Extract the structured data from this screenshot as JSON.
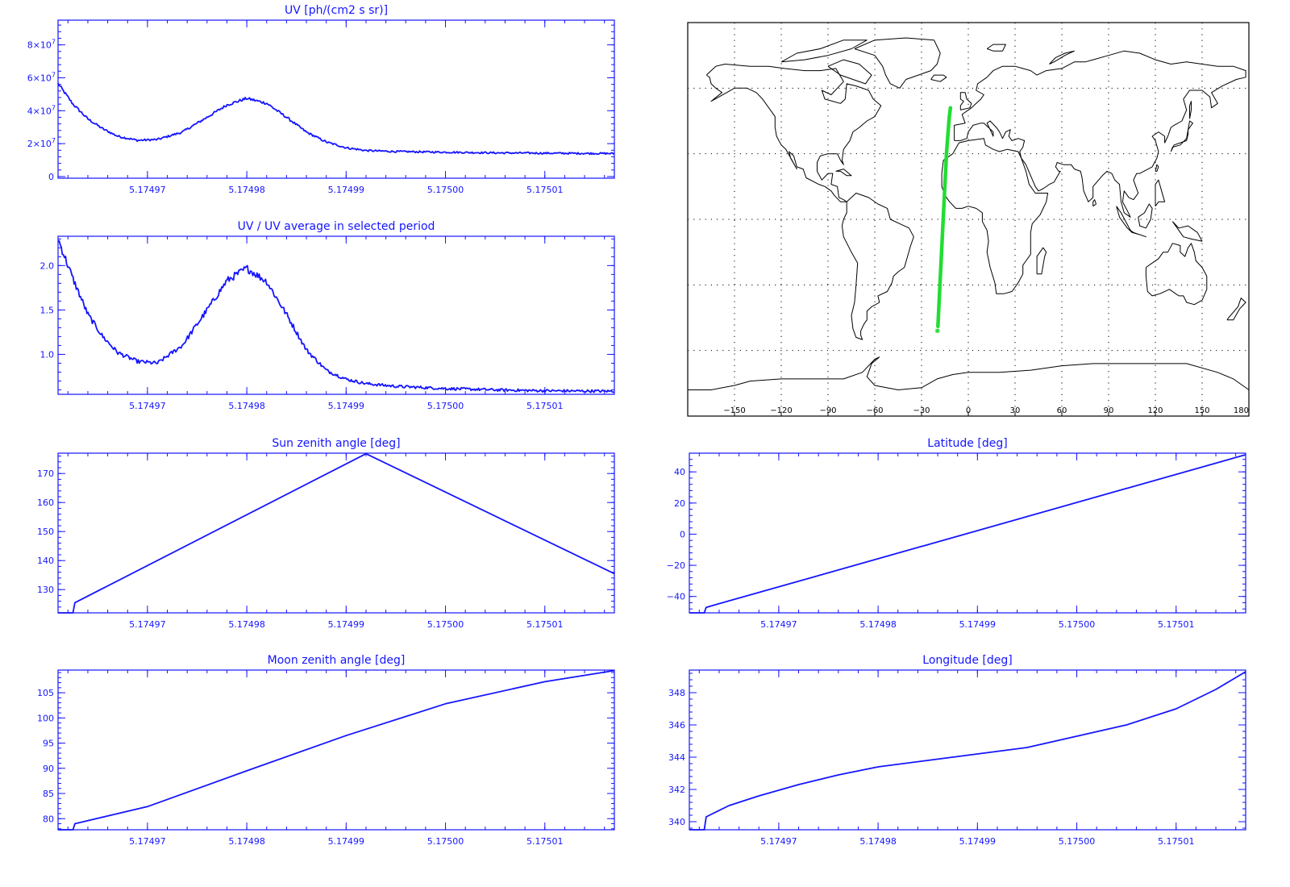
{
  "chart_data": [
    {
      "id": "uv",
      "type": "line",
      "title": "UV [ph/(cm2 s sr)]",
      "xlim": [
        5.174961,
        5.175017
      ],
      "ylim": [
        -1000000,
        95000000
      ],
      "x_ticks": [
        {
          "value": 5.17497,
          "label": "5.17497"
        },
        {
          "value": 5.17498,
          "label": "5.17498"
        },
        {
          "value": 5.17499,
          "label": "5.17499"
        },
        {
          "value": 5.175,
          "label": "5.17500"
        },
        {
          "value": 5.17501,
          "label": "5.17501"
        }
      ],
      "y_ticks": [
        {
          "value": 0,
          "label": "0"
        },
        {
          "value": 20000000,
          "label": "2×10",
          "exp": "7"
        },
        {
          "value": 40000000,
          "label": "4×10",
          "exp": "7"
        },
        {
          "value": 60000000,
          "label": "6×10",
          "exp": "7"
        },
        {
          "value": 80000000,
          "label": "8×10",
          "exp": "7"
        }
      ],
      "line_color": "#1515ff",
      "series_points": [
        [
          5.174961,
          56500000
        ],
        [
          5.1749625,
          44000000
        ],
        [
          5.174964,
          35000000
        ],
        [
          5.1749655,
          29000000
        ],
        [
          5.174967,
          24500000
        ],
        [
          5.174969,
          22000000
        ],
        [
          5.174971,
          22500000
        ],
        [
          5.1749735,
          27000000
        ],
        [
          5.174976,
          36000000
        ],
        [
          5.174978,
          43500000
        ],
        [
          5.17498,
          47500000
        ],
        [
          5.174982,
          44500000
        ],
        [
          5.174984,
          36000000
        ],
        [
          5.174986,
          27000000
        ],
        [
          5.174988,
          21000000
        ],
        [
          5.17499,
          17500000
        ],
        [
          5.174992,
          15800000
        ],
        [
          5.174995,
          15200000
        ],
        [
          5.175,
          14800000
        ],
        [
          5.175005,
          14400000
        ],
        [
          5.17501,
          14200000
        ],
        [
          5.175017,
          14000000
        ]
      ]
    },
    {
      "id": "uv-ratio",
      "type": "line",
      "title": "UV / UV average in selected period",
      "xlim": [
        5.174961,
        5.175017
      ],
      "ylim": [
        0.55,
        2.33
      ],
      "x_ticks": [
        {
          "value": 5.17497,
          "label": "5.17497"
        },
        {
          "value": 5.17498,
          "label": "5.17498"
        },
        {
          "value": 5.17499,
          "label": "5.17499"
        },
        {
          "value": 5.175,
          "label": "5.17500"
        },
        {
          "value": 5.17501,
          "label": "5.17501"
        }
      ],
      "y_ticks": [
        {
          "value": 1.0,
          "label": "1.0"
        },
        {
          "value": 1.5,
          "label": "1.5"
        },
        {
          "value": 2.0,
          "label": "2.0"
        }
      ],
      "line_color": "#1515ff",
      "series_points": [
        [
          5.174961,
          2.3
        ],
        [
          5.1749625,
          1.85
        ],
        [
          5.174964,
          1.45
        ],
        [
          5.1749655,
          1.2
        ],
        [
          5.174967,
          1.02
        ],
        [
          5.174969,
          0.92
        ],
        [
          5.174971,
          0.9
        ],
        [
          5.1749735,
          1.1
        ],
        [
          5.174976,
          1.5
        ],
        [
          5.174978,
          1.83
        ],
        [
          5.17498,
          1.97
        ],
        [
          5.174982,
          1.82
        ],
        [
          5.174984,
          1.45
        ],
        [
          5.174986,
          1.05
        ],
        [
          5.174988,
          0.82
        ],
        [
          5.17499,
          0.72
        ],
        [
          5.174992,
          0.67
        ],
        [
          5.174995,
          0.64
        ],
        [
          5.175,
          0.615
        ],
        [
          5.175005,
          0.6
        ],
        [
          5.17501,
          0.59
        ],
        [
          5.175017,
          0.585
        ]
      ]
    },
    {
      "id": "sun-zenith",
      "type": "line",
      "title": "Sun zenith angle [deg]",
      "xlim": [
        5.174961,
        5.175017
      ],
      "ylim": [
        122,
        177
      ],
      "x_ticks": [
        {
          "value": 5.17497,
          "label": "5.17497"
        },
        {
          "value": 5.17498,
          "label": "5.17498"
        },
        {
          "value": 5.17499,
          "label": "5.17499"
        },
        {
          "value": 5.175,
          "label": "5.17500"
        },
        {
          "value": 5.17501,
          "label": "5.17501"
        }
      ],
      "y_ticks": [
        {
          "value": 130,
          "label": "130"
        },
        {
          "value": 140,
          "label": "140"
        },
        {
          "value": 150,
          "label": "150"
        },
        {
          "value": 160,
          "label": "160"
        },
        {
          "value": 170,
          "label": "170"
        }
      ],
      "line_color": "#1515ff",
      "series_points": [
        [
          5.174961,
          122
        ],
        [
          5.1749625,
          122
        ],
        [
          5.1749627,
          125.5
        ],
        [
          5.174992,
          176.8
        ],
        [
          5.175017,
          135.5
        ]
      ]
    },
    {
      "id": "latitude",
      "type": "line",
      "title": "Latitude [deg]",
      "xlim": [
        5.174961,
        5.175017
      ],
      "ylim": [
        -50.5,
        52
      ],
      "x_ticks": [
        {
          "value": 5.17497,
          "label": "5.17497"
        },
        {
          "value": 5.17498,
          "label": "5.17498"
        },
        {
          "value": 5.17499,
          "label": "5.17499"
        },
        {
          "value": 5.175,
          "label": "5.17500"
        },
        {
          "value": 5.17501,
          "label": "5.17501"
        }
      ],
      "y_ticks": [
        {
          "value": -40,
          "label": "−40"
        },
        {
          "value": -20,
          "label": "−20"
        },
        {
          "value": 0,
          "label": "0"
        },
        {
          "value": 20,
          "label": "20"
        },
        {
          "value": 40,
          "label": "40"
        }
      ],
      "line_color": "#1515ff",
      "series_points": [
        [
          5.174961,
          -50.5
        ],
        [
          5.1749625,
          -50.5
        ],
        [
          5.1749627,
          -47
        ],
        [
          5.175017,
          51
        ]
      ]
    },
    {
      "id": "moon-zenith",
      "type": "line",
      "title": "Moon zenith angle [deg]",
      "xlim": [
        5.174961,
        5.175017
      ],
      "ylim": [
        77.8,
        109.5
      ],
      "x_ticks": [
        {
          "value": 5.17497,
          "label": "5.17497"
        },
        {
          "value": 5.17498,
          "label": "5.17498"
        },
        {
          "value": 5.17499,
          "label": "5.17499"
        },
        {
          "value": 5.175,
          "label": "5.17500"
        },
        {
          "value": 5.17501,
          "label": "5.17501"
        }
      ],
      "y_ticks": [
        {
          "value": 80,
          "label": "80"
        },
        {
          "value": 85,
          "label": "85"
        },
        {
          "value": 90,
          "label": "90"
        },
        {
          "value": 95,
          "label": "95"
        },
        {
          "value": 100,
          "label": "100"
        },
        {
          "value": 105,
          "label": "105"
        }
      ],
      "line_color": "#1515ff",
      "series_points": [
        [
          5.174961,
          77.8
        ],
        [
          5.1749625,
          77.8
        ],
        [
          5.1749627,
          79
        ],
        [
          5.17497,
          82.4
        ],
        [
          5.17498,
          89.5
        ],
        [
          5.17499,
          96.5
        ],
        [
          5.175,
          102.8
        ],
        [
          5.17501,
          107.2
        ],
        [
          5.175017,
          109.4
        ]
      ]
    },
    {
      "id": "longitude",
      "type": "line",
      "title": "Longitude [deg]",
      "xlim": [
        5.174961,
        5.175017
      ],
      "ylim": [
        339.5,
        349.4
      ],
      "x_ticks": [
        {
          "value": 5.17497,
          "label": "5.17497"
        },
        {
          "value": 5.17498,
          "label": "5.17498"
        },
        {
          "value": 5.17499,
          "label": "5.17499"
        },
        {
          "value": 5.175,
          "label": "5.17500"
        },
        {
          "value": 5.17501,
          "label": "5.17501"
        }
      ],
      "y_ticks": [
        {
          "value": 340,
          "label": "340"
        },
        {
          "value": 342,
          "label": "342"
        },
        {
          "value": 344,
          "label": "344"
        },
        {
          "value": 346,
          "label": "346"
        },
        {
          "value": 348,
          "label": "348"
        }
      ],
      "line_color": "#1515ff",
      "series_points": [
        [
          5.174961,
          339.5
        ],
        [
          5.1749625,
          339.5
        ],
        [
          5.1749627,
          340.3
        ],
        [
          5.174965,
          341
        ],
        [
          5.174968,
          341.6
        ],
        [
          5.174972,
          342.3
        ],
        [
          5.174976,
          342.9
        ],
        [
          5.17498,
          343.4
        ],
        [
          5.174985,
          343.8
        ],
        [
          5.17499,
          344.2
        ],
        [
          5.174995,
          344.6
        ],
        [
          5.175,
          345.3
        ],
        [
          5.175005,
          346
        ],
        [
          5.17501,
          347
        ],
        [
          5.175014,
          348.2
        ],
        [
          5.175017,
          349.3
        ]
      ]
    },
    {
      "id": "ground-track-map",
      "type": "map",
      "x_ticks": [
        {
          "value": -150,
          "label": "−150"
        },
        {
          "value": -120,
          "label": "−120"
        },
        {
          "value": -90,
          "label": "−90"
        },
        {
          "value": -60,
          "label": "−60"
        },
        {
          "value": -30,
          "label": "−30"
        },
        {
          "value": 0,
          "label": "0"
        },
        {
          "value": 30,
          "label": "30"
        },
        {
          "value": 60,
          "label": "60"
        },
        {
          "value": 90,
          "label": "90"
        },
        {
          "value": 120,
          "label": "120"
        },
        {
          "value": 150,
          "label": "150"
        },
        {
          "value": 180,
          "label": "180"
        }
      ],
      "grid": true,
      "track_color": "#22dd33",
      "track_points": [
        [
          -19.5,
          -49
        ],
        [
          -18.2,
          -30
        ],
        [
          -16.8,
          -10
        ],
        [
          -15.4,
          10
        ],
        [
          -14,
          30
        ],
        [
          -12.3,
          46
        ],
        [
          -11.5,
          51
        ]
      ],
      "track_start_marker": [
        -19.8,
        -51
      ]
    }
  ]
}
